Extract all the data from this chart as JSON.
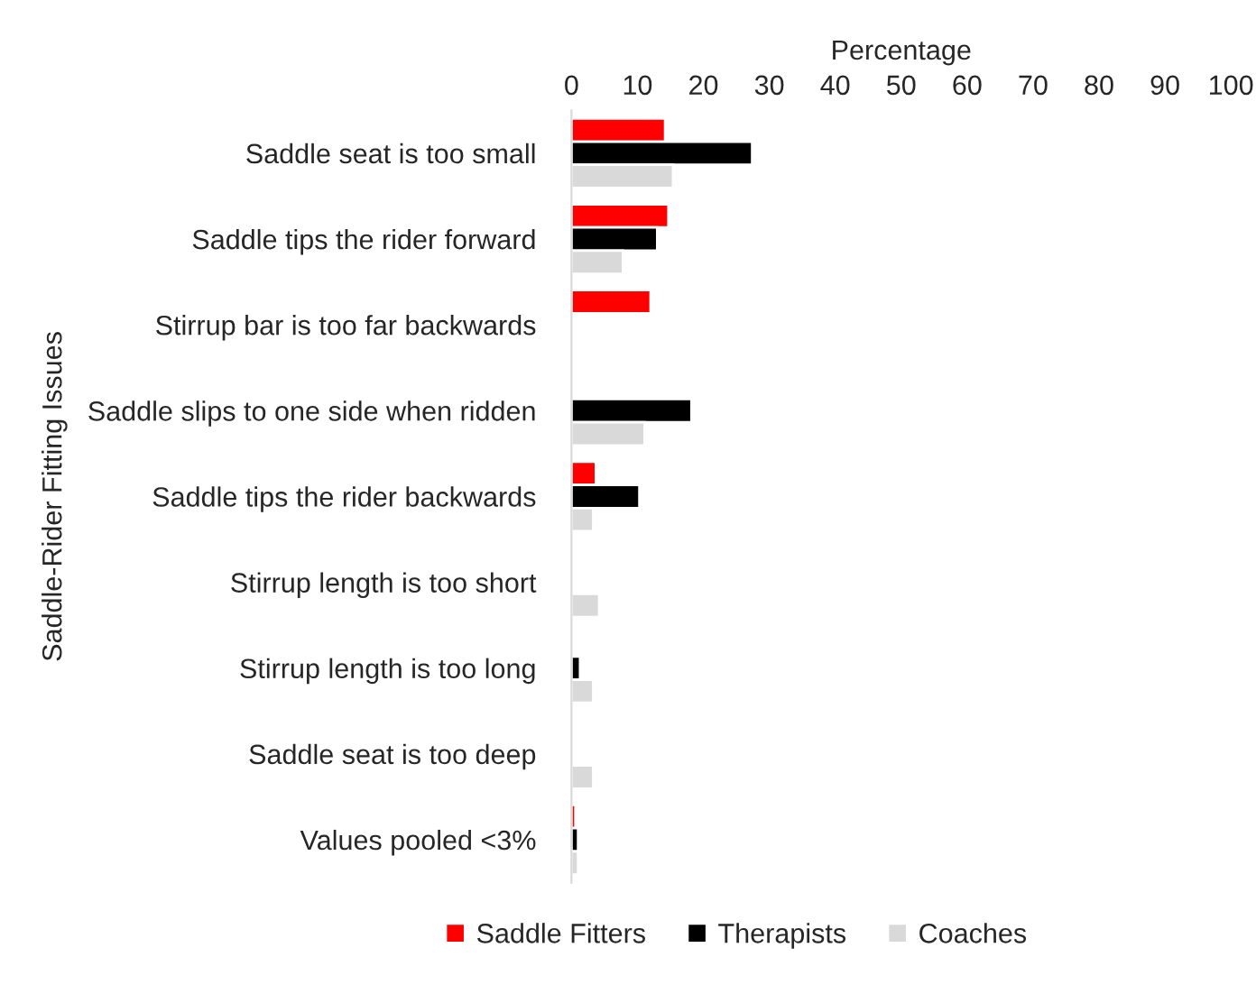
{
  "chart_data": {
    "type": "bar",
    "orientation": "horizontal",
    "xlabel": "Percentage",
    "ylabel": "Saddle-Rider Fitting Issues",
    "categories": [
      "Saddle seat is too small",
      "Saddle tips the rider forward",
      "Stirrup bar is too far backwards",
      "Saddle slips to one side when ridden",
      "Saddle tips the rider backwards",
      "Stirrup length is too short",
      "Stirrup length is too long",
      "Saddle seat is too deep",
      "Values pooled <3%"
    ],
    "series": [
      {
        "name": "Saddle Fitters",
        "color": "#ff0000",
        "values": [
          14.2,
          14.7,
          12.0,
          null,
          3.7,
          null,
          null,
          null,
          0.6
        ]
      },
      {
        "name": "Therapists",
        "color": "#000000",
        "values": [
          27.4,
          13.0,
          null,
          18.2,
          10.3,
          null,
          1.3,
          null,
          1.0
        ]
      },
      {
        "name": "Coaches",
        "color": "#d9d9d9",
        "values": [
          15.4,
          7.8,
          null,
          11.1,
          3.3,
          4.2,
          3.3,
          3.3,
          1.0
        ]
      }
    ],
    "xlim": [
      0,
      100
    ],
    "xticks": [
      0,
      10,
      20,
      30,
      40,
      50,
      60,
      70,
      80,
      90,
      100
    ],
    "grid": false,
    "legend": "bottom"
  }
}
